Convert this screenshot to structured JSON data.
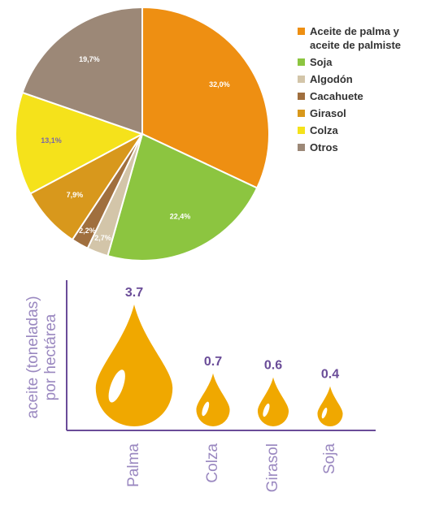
{
  "chart_data": [
    {
      "type": "pie",
      "categories": [
        "Aceite de palma y aceite de palmiste",
        "Soja",
        "Algodón",
        "Cacahuete",
        "Girasol",
        "Colza",
        "Otros"
      ],
      "values": [
        32.0,
        22.4,
        2.7,
        2.2,
        7.9,
        13.1,
        19.7
      ],
      "value_labels": [
        "32,0%",
        "22,4%",
        "2,7%",
        "2,2%",
        "7,9%",
        "13,1%",
        "19,7%"
      ],
      "colors": [
        "#ee8f12",
        "#8cc540",
        "#d3c5a9",
        "#a06f3e",
        "#d8981c",
        "#f5e21b",
        "#9c8877"
      ]
    },
    {
      "type": "pictograph",
      "ylabel": [
        "aceite (toneladas)",
        "por hectárea"
      ],
      "categories": [
        "Palma",
        "Colza",
        "Girasol",
        "Soja"
      ],
      "values": [
        3.7,
        0.7,
        0.6,
        0.4
      ],
      "color": "#f0a800"
    }
  ]
}
